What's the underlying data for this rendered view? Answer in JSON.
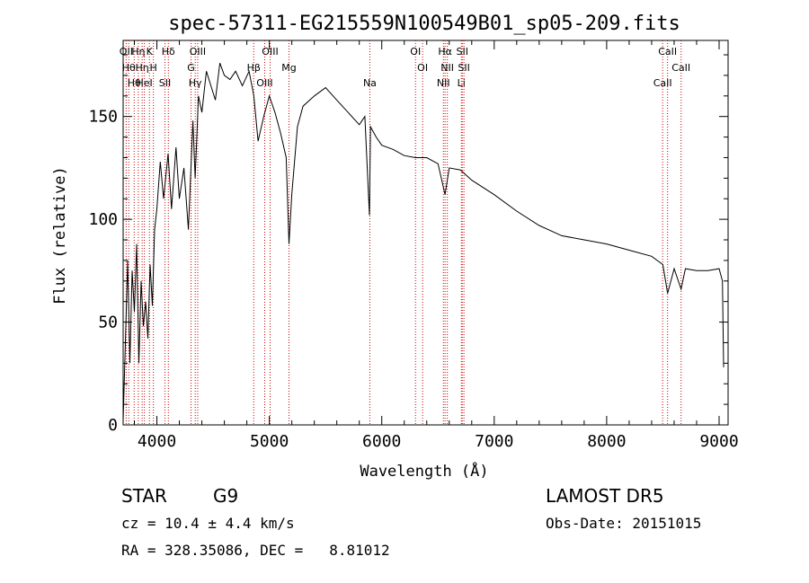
{
  "chart_data": {
    "type": "line",
    "title": "spec-57311-EG215559N100549B01_sp05-209.fits",
    "xlabel": "Wavelength (Å)",
    "ylabel": "Flux (relative)",
    "xlim": [
      3700,
      9080
    ],
    "ylim": [
      0,
      187
    ],
    "xticks": [
      4000,
      5000,
      6000,
      7000,
      8000,
      9000
    ],
    "yticks": [
      0,
      50,
      100,
      150
    ],
    "grid": false,
    "line_color": "#000000",
    "marker_color": "#cc0000",
    "series": [
      {
        "x": [
          3700,
          3720,
          3740,
          3760,
          3780,
          3800,
          3820,
          3840,
          3860,
          3880,
          3900,
          3920,
          3940,
          3960,
          3980,
          4000,
          4030,
          4060,
          4100,
          4130,
          4170,
          4200,
          4240,
          4280,
          4320,
          4340,
          4370,
          4400,
          4440,
          4480,
          4520,
          4560,
          4600,
          4650,
          4700,
          4760,
          4820,
          4862,
          4900,
          4950,
          5000,
          5050,
          5100,
          5150,
          5175,
          5200,
          5250,
          5300,
          5400,
          5500,
          5600,
          5700,
          5800,
          5850,
          5890,
          5900,
          5950,
          6000,
          6100,
          6200,
          6300,
          6400,
          6500,
          6563,
          6600,
          6700,
          6800,
          7000,
          7200,
          7400,
          7600,
          7800,
          8000,
          8200,
          8400,
          8500,
          8542,
          8600,
          8662,
          8700,
          8800,
          8900,
          9000,
          9030,
          9040
        ],
        "y": [
          2,
          40,
          80,
          30,
          75,
          55,
          88,
          30,
          70,
          48,
          60,
          42,
          78,
          58,
          95,
          105,
          128,
          110,
          132,
          105,
          135,
          110,
          125,
          95,
          148,
          120,
          160,
          152,
          172,
          165,
          158,
          176,
          170,
          168,
          172,
          165,
          172,
          160,
          138,
          150,
          160,
          152,
          142,
          130,
          88,
          112,
          145,
          155,
          160,
          164,
          158,
          152,
          146,
          150,
          102,
          145,
          140,
          136,
          134,
          131,
          130,
          130,
          127,
          112,
          125,
          124,
          119,
          112,
          104,
          97,
          92,
          90,
          88,
          85,
          82,
          78,
          64,
          76,
          66,
          76,
          75,
          75,
          76,
          70,
          28
        ]
      }
    ],
    "lines": [
      {
        "wl": 3727,
        "label": "OII"
      },
      {
        "wl": 3750,
        "label": "Hθ"
      },
      {
        "wl": 3798,
        "label": "Hθ"
      },
      {
        "wl": 3835,
        "label": "Hη"
      },
      {
        "wl": 3869,
        "label": "Hη"
      },
      {
        "wl": 3889,
        "label": "HeI"
      },
      {
        "wl": 3934,
        "label": "K"
      },
      {
        "wl": 3969,
        "label": "H"
      },
      {
        "wl": 4072,
        "label": "SII"
      },
      {
        "wl": 4102,
        "label": "Hδ"
      },
      {
        "wl": 4304,
        "label": "G"
      },
      {
        "wl": 4341,
        "label": "Hγ"
      },
      {
        "wl": 4363,
        "label": "OIII"
      },
      {
        "wl": 4861,
        "label": "Hβ"
      },
      {
        "wl": 4959,
        "label": "OIII"
      },
      {
        "wl": 5007,
        "label": "OIII"
      },
      {
        "wl": 5175,
        "label": "Mg"
      },
      {
        "wl": 5894,
        "label": "Na"
      },
      {
        "wl": 6300,
        "label": "OI"
      },
      {
        "wl": 6363,
        "label": "OI"
      },
      {
        "wl": 6548,
        "label": "NII"
      },
      {
        "wl": 6563,
        "label": "Hα"
      },
      {
        "wl": 6583,
        "label": "NII"
      },
      {
        "wl": 6708,
        "label": "Li"
      },
      {
        "wl": 6716,
        "label": "SII"
      },
      {
        "wl": 6731,
        "label": "SII"
      },
      {
        "wl": 8498,
        "label": "CaII"
      },
      {
        "wl": 8542,
        "label": "CaII"
      },
      {
        "wl": 8662,
        "label": "CaII"
      }
    ]
  },
  "footer": {
    "class_label": "STAR",
    "subclass": "G9",
    "survey": "LAMOST DR5",
    "cz": "cz = 10.4 ± 4.4 km/s",
    "obs_date": "Obs-Date: 20151015",
    "coords": "RA = 328.35086, DEC =   8.81012"
  }
}
